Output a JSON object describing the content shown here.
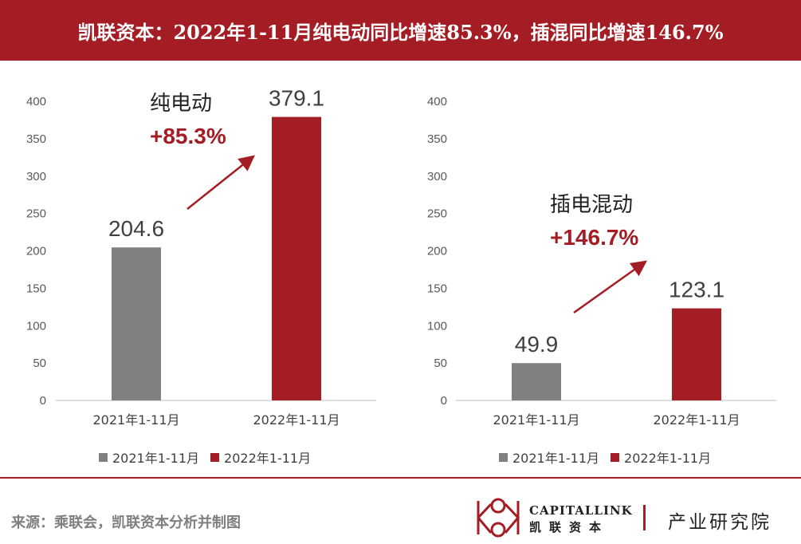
{
  "header": {
    "title": "凯联资本：2022年1-11月纯电动同比增速85.3%，插混同比增速146.7%"
  },
  "chart_data": [
    {
      "type": "bar",
      "categories": [
        "2021年1-11月",
        "2022年1-11月"
      ],
      "values": [
        204.6,
        379.1
      ],
      "colors": [
        "#808080",
        "#a51d24"
      ],
      "ylim": [
        0,
        400
      ],
      "yticks": [
        0,
        50,
        100,
        150,
        200,
        250,
        300,
        350,
        400
      ],
      "annotation": {
        "label": "纯电动",
        "growth": "+85.3%"
      },
      "legend": [
        "2021年1-11月",
        "2022年1-11月"
      ]
    },
    {
      "type": "bar",
      "categories": [
        "2021年1-11月",
        "2022年1-11月"
      ],
      "values": [
        49.9,
        123.1
      ],
      "colors": [
        "#808080",
        "#a51d24"
      ],
      "ylim": [
        0,
        400
      ],
      "yticks": [
        0,
        50,
        100,
        150,
        200,
        250,
        300,
        350,
        400
      ],
      "annotation": {
        "label": "插电混动",
        "growth": "+146.7%"
      },
      "legend": [
        "2021年1-11月",
        "2022年1-11月"
      ]
    }
  ],
  "footer": {
    "source": "来源：乘联会，凯联资本分析并制图",
    "brand_en": "CAPITALLINK",
    "brand_cn": "凯联资本",
    "brand_right": "产业研究院"
  },
  "colors": {
    "accent": "#a51d24",
    "gray_bar": "#808080"
  },
  "icons": {
    "logo": "capitallink-logo-icon"
  }
}
